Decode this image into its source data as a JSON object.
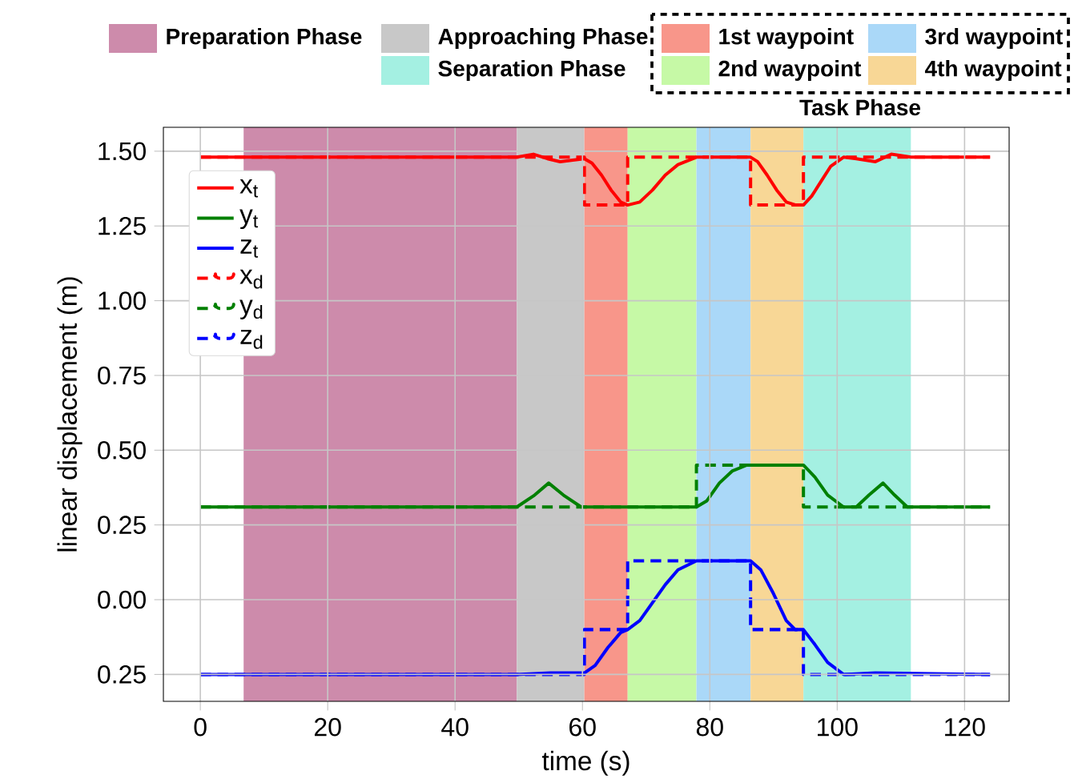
{
  "chart_data": {
    "type": "line",
    "xlabel": "time (s)",
    "ylabel": "linear displacement (m)",
    "legend_title": "Task Phase",
    "xlim": [
      -5.8,
      127
    ],
    "ylim": [
      -0.34,
      1.58
    ],
    "xticks": [
      0,
      20,
      40,
      60,
      80,
      100,
      120
    ],
    "yticks": [
      {
        "value": 1.5,
        "label": "1.50"
      },
      {
        "value": 1.25,
        "label": "1.25"
      },
      {
        "value": 1.0,
        "label": "1.00"
      },
      {
        "value": 0.75,
        "label": "0.75"
      },
      {
        "value": 0.5,
        "label": "0.50"
      },
      {
        "value": 0.25,
        "label": "0.25"
      },
      {
        "value": 0.0,
        "label": "0.00"
      },
      {
        "value": -0.25,
        "label": "0.25"
      }
    ],
    "grid": true,
    "legend": "top left",
    "marker": "none",
    "bands": [
      {
        "axis": "x",
        "from": 6.8,
        "to": 49.7,
        "label": "Preparation Phase",
        "color": "#cd8bab"
      },
      {
        "axis": "x",
        "from": 49.7,
        "to": 60.3,
        "label": "Approaching Phase",
        "color": "#c8c8c8"
      },
      {
        "axis": "x",
        "from": 60.3,
        "to": 67.1,
        "label": "1st waypoint",
        "color": "#f8968a"
      },
      {
        "axis": "x",
        "from": 67.1,
        "to": 77.9,
        "label": "2nd waypoint",
        "color": "#c6f9a6"
      },
      {
        "axis": "x",
        "from": 77.9,
        "to": 86.4,
        "label": "3rd waypoint",
        "color": "#aad8f8"
      },
      {
        "axis": "x",
        "from": 86.4,
        "to": 94.7,
        "label": "4th waypoint",
        "color": "#f8d796"
      },
      {
        "axis": "x",
        "from": 94.7,
        "to": 111.6,
        "label": "Separation Phase",
        "color": "#a4f0e2"
      }
    ],
    "series": [
      {
        "name": "x$_{t}$",
        "color": "#ff0000",
        "line_style": "solid",
        "x": [
          0,
          49.7,
          52.3,
          54.5,
          56.5,
          58.5,
          60.3,
          61.5,
          63,
          64.5,
          66,
          67.1,
          69,
          71,
          73,
          75,
          77.9,
          86.4,
          87.5,
          89,
          90.5,
          92,
          93.5,
          94.7,
          96,
          97.5,
          99,
          101,
          103,
          106,
          108.5,
          111.6,
          124
        ],
        "values": [
          1.48,
          1.48,
          1.49,
          1.475,
          1.465,
          1.47,
          1.475,
          1.46,
          1.42,
          1.37,
          1.33,
          1.32,
          1.33,
          1.37,
          1.42,
          1.455,
          1.48,
          1.48,
          1.465,
          1.42,
          1.37,
          1.33,
          1.32,
          1.32,
          1.35,
          1.4,
          1.45,
          1.48,
          1.475,
          1.465,
          1.49,
          1.48,
          1.48
        ]
      },
      {
        "name": "y$_{t}$",
        "color": "#008000",
        "line_style": "solid",
        "x": [
          0,
          49.7,
          52.5,
          54.7,
          57,
          59.8,
          77.9,
          79.5,
          81.5,
          83.5,
          85.8,
          94.7,
          96.5,
          98.5,
          101,
          103,
          105,
          107.2,
          109,
          111,
          124
        ],
        "values": [
          0.31,
          0.31,
          0.35,
          0.39,
          0.35,
          0.31,
          0.31,
          0.33,
          0.39,
          0.43,
          0.45,
          0.45,
          0.41,
          0.35,
          0.31,
          0.31,
          0.35,
          0.39,
          0.35,
          0.31,
          0.31
        ]
      },
      {
        "name": "z$_{t}$",
        "color": "#0000ff",
        "line_style": "solid",
        "x": [
          0,
          49.7,
          55,
          58,
          60.3,
          62,
          64,
          66,
          67.1,
          69,
          71,
          73,
          75,
          77.9,
          86.4,
          88,
          90,
          92,
          93.4,
          94.7,
          96.5,
          98.5,
          101,
          106,
          124
        ],
        "values": [
          -0.25,
          -0.25,
          -0.245,
          -0.245,
          -0.245,
          -0.22,
          -0.16,
          -0.11,
          -0.1,
          -0.07,
          -0.01,
          0.05,
          0.1,
          0.13,
          0.13,
          0.1,
          0.02,
          -0.07,
          -0.1,
          -0.1,
          -0.15,
          -0.21,
          -0.25,
          -0.245,
          -0.25
        ]
      },
      {
        "name": "x$_{d}$",
        "color": "#ff0000",
        "type": "step",
        "line_style": "dashed",
        "x": [
          0,
          60.3,
          67.1,
          86.4,
          94.7,
          124
        ],
        "values": [
          1.48,
          1.32,
          1.48,
          1.32,
          1.48,
          1.48
        ]
      },
      {
        "name": "y$_{d}$",
        "color": "#008000",
        "type": "step",
        "line_style": "dashed",
        "x": [
          0,
          77.9,
          94.7,
          124
        ],
        "values": [
          0.31,
          0.45,
          0.31,
          0.31
        ]
      },
      {
        "name": "z$_{d}$",
        "color": "#0000ff",
        "type": "step",
        "line_style": "dashed",
        "x": [
          0,
          60.3,
          67.1,
          86.4,
          94.7,
          124
        ],
        "values": [
          -0.25,
          -0.1,
          0.13,
          -0.1,
          -0.25,
          -0.25
        ]
      }
    ]
  }
}
